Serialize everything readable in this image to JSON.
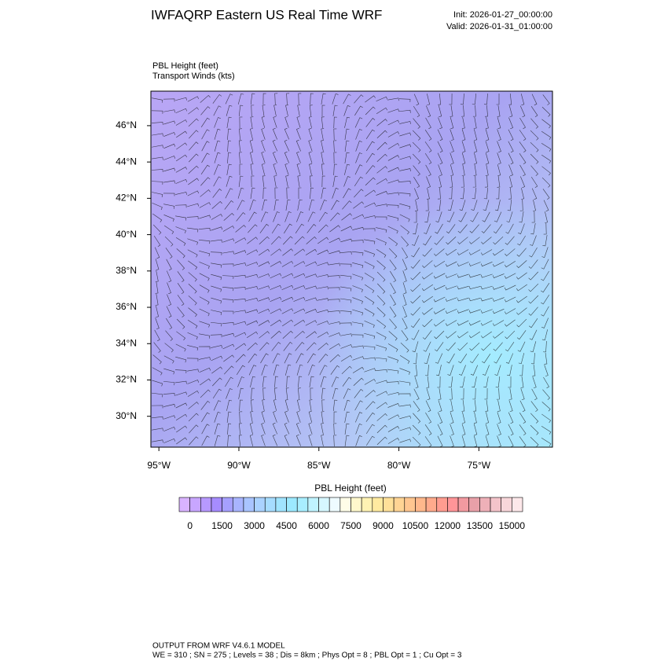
{
  "header": {
    "title": "IWFAQRP Eastern US Real Time WRF",
    "init": "Init: 2026-01-27_00:00:00",
    "valid": "Valid: 2026-01-31_01:00:00"
  },
  "fields": {
    "shaded": "PBL Height   (feet)",
    "vectors": "Transport Winds   (kts)"
  },
  "map": {
    "lat_range": [
      28.3,
      47.9
    ],
    "lon_range": [
      -95.5,
      -70.4
    ],
    "lat_ticks": [
      {
        "value": 46,
        "label": "46°N"
      },
      {
        "value": 44,
        "label": "44°N"
      },
      {
        "value": 42,
        "label": "42°N"
      },
      {
        "value": 40,
        "label": "40°N"
      },
      {
        "value": 38,
        "label": "38°N"
      },
      {
        "value": 36,
        "label": "36°N"
      },
      {
        "value": 34,
        "label": "34°N"
      },
      {
        "value": 32,
        "label": "32°N"
      },
      {
        "value": 30,
        "label": "30°N"
      }
    ],
    "lon_ticks": [
      {
        "value": -95,
        "label": "95°W"
      },
      {
        "value": -90,
        "label": "90°W"
      },
      {
        "value": -85,
        "label": "85°W"
      },
      {
        "value": -80,
        "label": "80°W"
      },
      {
        "value": -75,
        "label": "75°W"
      }
    ]
  },
  "colorbar": {
    "title": "PBL Height  (feet)",
    "range": [
      -500,
      15500
    ],
    "ticks": [
      0,
      1500,
      3000,
      4500,
      6000,
      7500,
      9000,
      10500,
      12000,
      13500,
      15000
    ],
    "colors": [
      "#d9b3ff",
      "#c8a6ff",
      "#b799ff",
      "#a68cff",
      "#a6a0ff",
      "#a8b4ff",
      "#a9c4ff",
      "#aad2ff",
      "#a6dcff",
      "#a0e4ff",
      "#9ce9ff",
      "#a8eeff",
      "#bff3ff",
      "#d6f7ff",
      "#eefbff",
      "#fffde8",
      "#fff8cc",
      "#fff2b3",
      "#ffeaa0",
      "#ffe099",
      "#ffd494",
      "#ffc690",
      "#ffb88c",
      "#ffaa8c",
      "#ff9c90",
      "#ff9598",
      "#f29aa0",
      "#e8a0a8",
      "#eeb0b8",
      "#f4c4ca",
      "#f8d6da",
      "#fde8ea"
    ]
  },
  "footer": {
    "model": "OUTPUT FROM WRF V4.6.1 MODEL",
    "settings": "WE = 310 ; SN = 275 ; Levels = 38 ; Dis = 8km ; Phys Opt = 8 ; PBL Opt = 1 ; Cu Opt = 3"
  }
}
